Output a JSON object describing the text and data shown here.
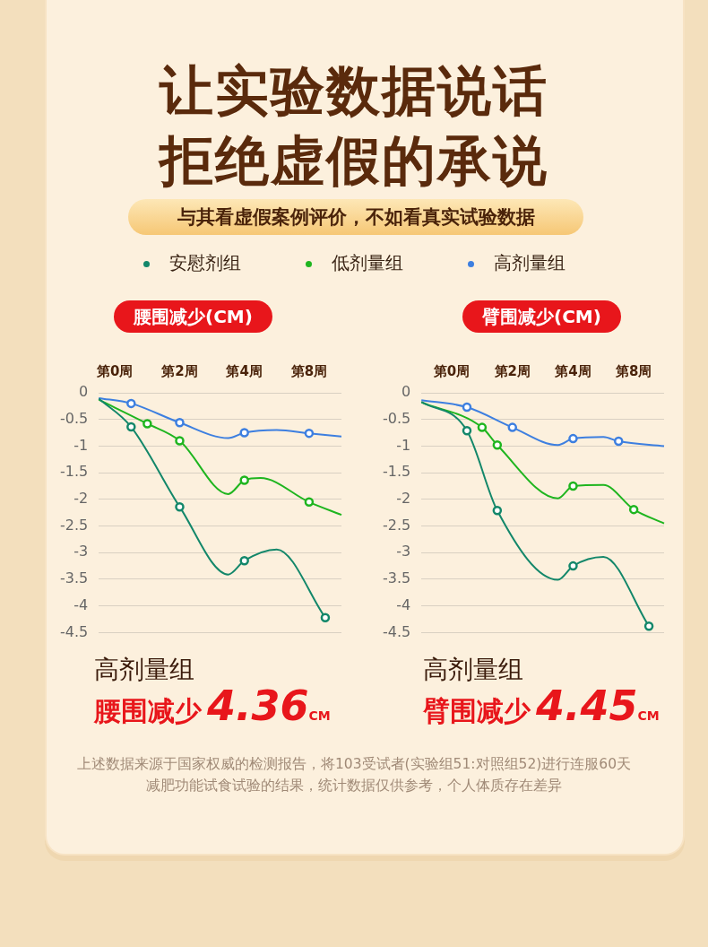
{
  "chart_data": [
    {
      "type": "other",
      "title": "让实验数据说话",
      "subtitle": "拒绝虚假的承说",
      "annotations": [
        "与其看虚假案例评价，不如看真实试验数据"
      ]
    },
    {
      "type": "line",
      "title": "腰围减少(CM)",
      "legend": "top",
      "grid": "y",
      "categories": [
        null,
        "第0周",
        null,
        null,
        null,
        "第2周",
        null,
        null,
        null,
        "第4周",
        null,
        null,
        null,
        "第8周",
        null,
        null
      ],
      "ylim": [
        -4.5,
        0
      ],
      "yticks": [
        0,
        -0.5,
        -1,
        -1.5,
        -2,
        -2.5,
        -3,
        -3.5,
        -4,
        -4.5
      ],
      "marker": "none",
      "series": [
        {
          "name": "安慰剂组",
          "color": "#13876a",
          "values": [
            -0.11,
            null,
            -0.64,
            null,
            null,
            -2.14,
            null,
            null,
            -3.41,
            -3.15,
            null,
            -2.94,
            null,
            null,
            -4.22,
            null
          ]
        },
        {
          "name": "低剂量组",
          "color": "#1fb51f",
          "values": [
            -0.13,
            null,
            null,
            -0.58,
            null,
            -0.9,
            null,
            null,
            -1.9,
            -1.64,
            -1.6,
            null,
            null,
            -2.05,
            null,
            -2.29
          ]
        },
        {
          "name": "高剂量组",
          "color": "#3d7fe0",
          "values": [
            -0.1,
            null,
            -0.2,
            null,
            null,
            -0.56,
            null,
            null,
            -0.85,
            -0.75,
            null,
            -0.7,
            null,
            -0.76,
            null,
            -0.82
          ]
        },
        {
          "type": "scatter",
          "marker": "circle",
          "color": "#13876a",
          "values": [
            null,
            null,
            -0.64,
            null,
            null,
            -2.14,
            null,
            null,
            null,
            -3.15,
            null,
            null,
            null,
            null,
            -4.22,
            null
          ]
        },
        {
          "type": "scatter",
          "marker": "circle",
          "color": "#1fb51f",
          "values": [
            null,
            null,
            null,
            -0.58,
            null,
            -0.9,
            null,
            null,
            null,
            -1.64,
            null,
            null,
            null,
            -2.05,
            null,
            null
          ]
        },
        {
          "type": "scatter",
          "marker": "circle",
          "color": "#3d7fe0",
          "values": [
            null,
            null,
            -0.2,
            null,
            null,
            -0.56,
            null,
            null,
            null,
            -0.75,
            null,
            null,
            null,
            -0.76,
            null,
            null
          ]
        }
      ],
      "annotations": [
        "高剂量组",
        "腰围减少",
        "4.36",
        "CM"
      ]
    },
    {
      "type": "line",
      "title": "臂围减少(CM)",
      "grid": "y",
      "categories": [
        null,
        null,
        "第0周",
        null,
        null,
        null,
        "第2周",
        null,
        null,
        null,
        "第4周",
        null,
        null,
        null,
        "第8周",
        null,
        null
      ],
      "ylim": [
        -4.5,
        0
      ],
      "yticks": [
        0,
        -0.5,
        -1,
        -1.5,
        -2,
        -2.5,
        -3,
        -3.5,
        -4,
        -4.5
      ],
      "marker": "none",
      "series": [
        {
          "color": "#13876a",
          "values": [
            -0.17,
            null,
            null,
            -0.71,
            null,
            -2.21,
            null,
            null,
            null,
            -3.51,
            -3.25,
            null,
            -3.08,
            null,
            null,
            -4.38,
            null
          ]
        },
        {
          "color": "#1fb51f",
          "values": [
            -0.18,
            null,
            null,
            null,
            -0.65,
            -0.98,
            null,
            null,
            null,
            -1.98,
            -1.75,
            null,
            -1.73,
            null,
            -2.19,
            null,
            -2.45
          ]
        },
        {
          "color": "#3d7fe0",
          "values": [
            -0.14,
            null,
            null,
            -0.27,
            null,
            null,
            -0.65,
            null,
            null,
            -0.98,
            -0.86,
            null,
            -0.83,
            -0.91,
            null,
            null,
            -1.0
          ]
        },
        {
          "type": "scatter",
          "marker": "circle",
          "color": "#13876a",
          "values": [
            null,
            null,
            null,
            -0.71,
            null,
            -2.21,
            null,
            null,
            null,
            null,
            -3.25,
            null,
            null,
            null,
            null,
            -4.38,
            null
          ]
        },
        {
          "type": "scatter",
          "marker": "circle",
          "color": "#1fb51f",
          "values": [
            null,
            null,
            null,
            null,
            -0.65,
            -0.98,
            null,
            null,
            null,
            null,
            -1.75,
            null,
            null,
            null,
            -2.19,
            null,
            null
          ]
        },
        {
          "type": "scatter",
          "marker": "circle",
          "color": "#3d7fe0",
          "values": [
            null,
            null,
            null,
            -0.27,
            null,
            null,
            -0.65,
            null,
            null,
            null,
            -0.86,
            null,
            null,
            -0.91,
            null,
            null,
            null
          ]
        }
      ],
      "annotations": [
        "高剂量组",
        "臂围减少",
        "4.45",
        "CM"
      ]
    },
    {
      "type": "other",
      "annotations": [
        "上述数据来源于国家权威的检测报告，将103受试者(实验组51:对照组52)进行连服60天减肥功能试食试验的结果，统计数据仅供参考，个人体质存在差异"
      ]
    }
  ]
}
